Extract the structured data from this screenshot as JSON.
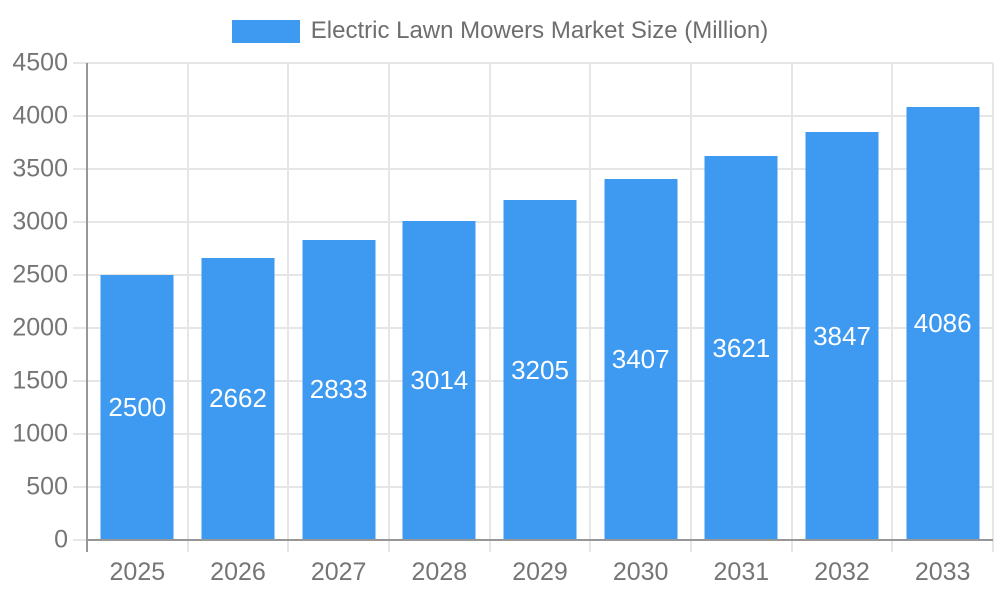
{
  "legend": {
    "label": "Electric Lawn Mowers Market Size (Million)"
  },
  "colors": {
    "bar": "#3D9AF0",
    "grid_line": "#E6E6E6",
    "axis_line": "#979797",
    "tick_label": "#757575",
    "legend_text": "#6E6E6E",
    "bar_label": "#FFFFFF",
    "background": "#FFFFFF"
  },
  "chart_data": {
    "type": "bar",
    "title": "",
    "xlabel": "",
    "ylabel": "",
    "categories": [
      "2025",
      "2026",
      "2027",
      "2028",
      "2029",
      "2030",
      "2031",
      "2032",
      "2033"
    ],
    "series": [
      {
        "name": "Electric Lawn Mowers Market Size (Million)",
        "values": [
          2500,
          2662,
          2833,
          3014,
          3205,
          3407,
          3621,
          3847,
          4086
        ]
      }
    ],
    "bar_value_labels": [
      "2500",
      "2662",
      "2833",
      "3014",
      "3205",
      "3407",
      "3621",
      "3847",
      "4086"
    ],
    "ylim": [
      0,
      4500
    ],
    "yticks": [
      0,
      500,
      1000,
      1500,
      2000,
      2500,
      3000,
      3500,
      4000,
      4500
    ],
    "grid": true,
    "legend_position": "top-center",
    "value_labels_visible": true,
    "value_label_position": "center-of-bar"
  }
}
